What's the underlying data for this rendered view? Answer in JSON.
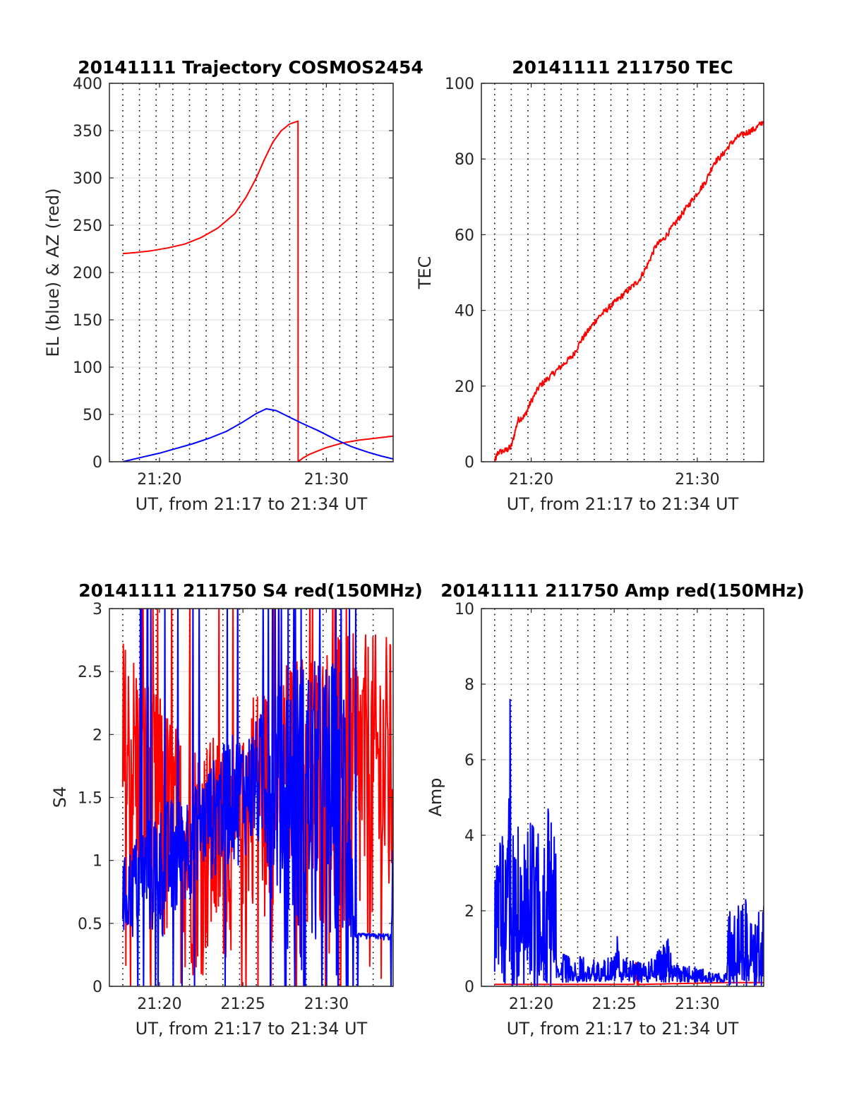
{
  "chart_data": [
    {
      "type": "line",
      "title": "20141111 Trajectory COSMOS2454",
      "xlabel": "UT, from 21:17 to 21:34 UT",
      "ylabel": "EL (blue) & AZ (red)",
      "xlim": [
        17,
        34
      ],
      "ylim": [
        0,
        400
      ],
      "xticks": [
        20,
        30
      ],
      "xtick_labels": [
        "21:20",
        "21:30"
      ],
      "yticks": [
        0,
        50,
        100,
        150,
        200,
        250,
        300,
        350,
        400
      ],
      "ytick_labels": [
        "0",
        "50",
        "100",
        "150",
        "200",
        "250",
        "300",
        "350",
        "400"
      ],
      "grid_x": [
        17.8,
        18.8,
        19.8,
        20.8,
        21.8,
        22.8,
        23.8,
        24.8,
        25.8,
        26.8,
        27.8,
        28.8,
        29.8,
        30.8,
        31.8,
        32.8
      ],
      "grid_y": [
        50,
        100,
        150,
        200,
        250,
        300,
        350,
        400
      ],
      "series": [
        {
          "color": "#ff0000",
          "points": [
            [
              17.8,
              220
            ],
            [
              18.5,
              221
            ],
            [
              19.5,
              223
            ],
            [
              20.5,
              226
            ],
            [
              21.5,
              230
            ],
            [
              22.5,
              237
            ],
            [
              23.5,
              247
            ],
            [
              24.5,
              262
            ],
            [
              25.2,
              280
            ],
            [
              25.8,
              300
            ],
            [
              26.3,
              320
            ],
            [
              26.8,
              338
            ],
            [
              27.3,
              350
            ],
            [
              27.8,
              357
            ],
            [
              28.3,
              360
            ],
            [
              28.31,
              0
            ],
            [
              28.6,
              4
            ],
            [
              29,
              8
            ],
            [
              30,
              15
            ],
            [
              31,
              20
            ],
            [
              32,
              23
            ],
            [
              33,
              25
            ],
            [
              34,
              27
            ]
          ]
        },
        {
          "color": "#0000ff",
          "points": [
            [
              17.8,
              0
            ],
            [
              19,
              5
            ],
            [
              20,
              9
            ],
            [
              21,
              14
            ],
            [
              22,
              19
            ],
            [
              23,
              25
            ],
            [
              24,
              32
            ],
            [
              25,
              42
            ],
            [
              25.8,
              51
            ],
            [
              26.4,
              56
            ],
            [
              27,
              54
            ],
            [
              27.8,
              47
            ],
            [
              28.5,
              41
            ],
            [
              29.5,
              33
            ],
            [
              30.5,
              24
            ],
            [
              31.5,
              16
            ],
            [
              32.5,
              10
            ],
            [
              33.3,
              6
            ],
            [
              34,
              3
            ]
          ]
        }
      ]
    },
    {
      "type": "line",
      "title": "20141111 211750 TEC",
      "xlabel": "UT, from 21:17 to 21:34 UT",
      "ylabel": "TEC",
      "xlim": [
        17,
        34
      ],
      "ylim": [
        0,
        100
      ],
      "xticks": [
        20,
        30
      ],
      "xtick_labels": [
        "21:20",
        "21:30"
      ],
      "yticks": [
        0,
        20,
        40,
        60,
        80,
        100
      ],
      "ytick_labels": [
        "0",
        "20",
        "40",
        "60",
        "80",
        "100"
      ],
      "grid_x": [
        17.8,
        18.8,
        19.8,
        20.8,
        21.8,
        22.8,
        23.8,
        24.8,
        25.8,
        26.8,
        27.8,
        28.8,
        29.8,
        30.8,
        31.8,
        32.8
      ],
      "grid_y": [
        20,
        40,
        60,
        80,
        100
      ],
      "series": [
        {
          "color": "#ff0000",
          "points": [
            [
              17.8,
              0
            ],
            [
              18,
              2.5
            ],
            [
              18.5,
              3
            ],
            [
              18.8,
              4
            ],
            [
              19.2,
              11
            ],
            [
              19.6,
              12
            ],
            [
              20,
              16
            ],
            [
              20.5,
              20
            ],
            [
              21,
              22
            ],
            [
              21.5,
              24
            ],
            [
              22,
              26
            ],
            [
              22.5,
              28
            ],
            [
              23,
              32
            ],
            [
              23.5,
              35
            ],
            [
              24,
              38
            ],
            [
              24.5,
              40
            ],
            [
              25,
              42
            ],
            [
              25.5,
              44
            ],
            [
              26,
              46
            ],
            [
              26.5,
              48
            ],
            [
              27,
              52
            ],
            [
              27.5,
              57
            ],
            [
              28,
              59
            ],
            [
              28.5,
              62
            ],
            [
              29,
              65
            ],
            [
              29.5,
              68
            ],
            [
              30,
              71
            ],
            [
              30.5,
              74
            ],
            [
              31,
              79
            ],
            [
              31.5,
              81
            ],
            [
              32,
              84
            ],
            [
              32.5,
              86
            ],
            [
              33,
              87
            ],
            [
              33.5,
              88
            ],
            [
              34,
              90
            ]
          ]
        }
      ]
    },
    {
      "type": "line",
      "title": "20141111 211750 S4 red(150MHz)",
      "xlabel": "UT, from 21:17 to 21:34 UT",
      "ylabel": "S4",
      "xlim": [
        17,
        34
      ],
      "ylim": [
        0,
        3
      ],
      "xticks": [
        20,
        25,
        30
      ],
      "xtick_labels": [
        "21:20",
        "21:25",
        "21:30"
      ],
      "yticks": [
        0,
        0.5,
        1,
        1.5,
        2,
        2.5,
        3
      ],
      "ytick_labels": [
        "0",
        "0.5",
        "1",
        "1.5",
        "2",
        "2.5",
        "3"
      ],
      "grid_x": [
        17.8,
        18.8,
        19.8,
        20.8,
        21.8,
        22.8,
        23.8,
        24.8,
        25.8,
        26.8,
        27.8,
        28.8,
        29.8,
        30.8,
        31.8,
        32.8
      ],
      "grid_y": [
        0.5,
        1,
        1.5,
        2,
        2.5,
        3
      ],
      "series": [
        {
          "color": "#ff0000",
          "profile": [
            [
              17.8,
              2.8,
              0.0
            ],
            [
              18.6,
              2.7,
              0.4
            ],
            [
              19.6,
              2.4,
              0.0
            ],
            [
              20.6,
              2.2,
              0.0
            ],
            [
              21.6,
              2.0,
              0.0
            ],
            [
              22.6,
              2.0,
              0.0
            ],
            [
              23.6,
              2.0,
              0.0
            ],
            [
              24.6,
              1.7,
              0.3
            ],
            [
              25.6,
              2.4,
              0.6
            ],
            [
              26.6,
              2.4,
              0.3
            ],
            [
              27.6,
              2.6,
              0.5
            ],
            [
              28.6,
              2.7,
              0.0
            ],
            [
              29.6,
              2.7,
              0.3
            ],
            [
              30.6,
              2.8,
              0.0
            ],
            [
              31.6,
              2.8,
              0.0
            ],
            [
              32.6,
              2.8,
              0.0
            ],
            [
              33.4,
              2.8,
              0.0
            ],
            [
              34,
              2.8,
              0.0
            ]
          ]
        },
        {
          "color": "#0000ff",
          "profile": [
            [
              17.8,
              1.0,
              0.3
            ],
            [
              18.6,
              1.2,
              0.3
            ],
            [
              19.6,
              1.4,
              0.3
            ],
            [
              20.6,
              1.5,
              0.3
            ],
            [
              21.2,
              1.5,
              0.4
            ],
            [
              22.2,
              1.6,
              0.8
            ],
            [
              23.2,
              1.8,
              0.8
            ],
            [
              24.2,
              2.0,
              0.9
            ],
            [
              25.2,
              2.0,
              1.0
            ],
            [
              26.2,
              2.2,
              0.9
            ],
            [
              27.2,
              2.4,
              0.5
            ],
            [
              28.2,
              2.6,
              0.0
            ],
            [
              29.2,
              2.6,
              0.0
            ],
            [
              30.2,
              2.6,
              0.0
            ],
            [
              31.2,
              2.6,
              0.0
            ],
            [
              31.7,
              0.42,
              0.38
            ],
            [
              33.9,
              0.42,
              0.36
            ],
            [
              34,
              1.4,
              0.4
            ]
          ]
        }
      ]
    },
    {
      "type": "line",
      "title": "20141111 211750 Amp red(150MHz)",
      "xlabel": "UT, from 21:17 to 21:34 UT",
      "ylabel": "Amp",
      "xlim": [
        17,
        34
      ],
      "ylim": [
        0,
        10
      ],
      "xticks": [
        20,
        25,
        30
      ],
      "xtick_labels": [
        "21:20",
        "21:25",
        "21:30"
      ],
      "yticks": [
        0,
        2,
        4,
        6,
        8,
        10
      ],
      "ytick_labels": [
        "0",
        "2",
        "4",
        "6",
        "8",
        "10"
      ],
      "grid_x": [
        17.8,
        18.8,
        19.8,
        20.8,
        21.8,
        22.8,
        23.8,
        24.8,
        25.8,
        26.8,
        27.8,
        28.8,
        29.8,
        30.8,
        31.8,
        32.8
      ],
      "grid_y": [
        2,
        4,
        6,
        8,
        10
      ],
      "series": [
        {
          "color": "#ff0000",
          "profile": [
            [
              17.8,
              0.05,
              0
            ],
            [
              26.2,
              0.05,
              0
            ],
            [
              26.3,
              1.2,
              0
            ],
            [
              26.5,
              0.05,
              0
            ],
            [
              31.9,
              0.1,
              0
            ],
            [
              34,
              0.1,
              0
            ]
          ]
        },
        {
          "color": "#0000ff",
          "profile": [
            [
              17.8,
              4.0,
              0
            ],
            [
              18.6,
              4.3,
              0
            ],
            [
              18.7,
              8.95,
              0
            ],
            [
              18.8,
              4.3,
              0
            ],
            [
              20.5,
              4.4,
              0
            ],
            [
              21.2,
              4.9,
              0
            ],
            [
              21.3,
              4.0,
              0
            ],
            [
              21.5,
              4.0,
              0
            ],
            [
              21.55,
              0.9,
              0.1
            ],
            [
              23,
              0.8,
              0.1
            ],
            [
              24,
              0.7,
              0.1
            ],
            [
              25,
              0.8,
              0.1
            ],
            [
              25.1,
              1.9,
              0.1
            ],
            [
              25.3,
              0.8,
              0.1
            ],
            [
              27,
              0.6,
              0.1
            ],
            [
              28.3,
              1.3,
              0.1
            ],
            [
              28.5,
              0.6,
              0.1
            ],
            [
              30,
              0.5,
              0.1
            ],
            [
              31.7,
              0.3,
              0.1
            ],
            [
              31.9,
              2.0,
              0
            ],
            [
              33,
              2.4,
              0
            ],
            [
              34,
              2.4,
              0
            ]
          ]
        }
      ]
    }
  ]
}
